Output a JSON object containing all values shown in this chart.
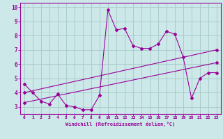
{
  "xlabel": "Windchill (Refroidissement éolien,°C)",
  "ylabel": "",
  "xlim": [
    -0.5,
    23.5
  ],
  "ylim": [
    2.5,
    10.3
  ],
  "xticks": [
    0,
    1,
    2,
    3,
    4,
    5,
    6,
    7,
    8,
    9,
    10,
    11,
    12,
    13,
    14,
    15,
    16,
    17,
    18,
    19,
    20,
    21,
    22,
    23
  ],
  "yticks": [
    3,
    4,
    5,
    6,
    7,
    8,
    9,
    10
  ],
  "bg_color": "#cce8e8",
  "line_color": "#990099",
  "grid_color": "#aacccc",
  "line1_x": [
    0,
    1,
    2,
    3,
    4,
    5,
    6,
    7,
    8,
    9,
    10,
    11,
    12,
    13,
    14,
    15,
    16,
    17,
    18,
    19,
    20,
    21,
    22,
    23
  ],
  "line1_y": [
    4.6,
    4.0,
    3.4,
    3.2,
    3.9,
    3.1,
    3.0,
    2.8,
    2.8,
    3.8,
    9.8,
    8.4,
    8.5,
    7.3,
    7.1,
    7.1,
    7.4,
    8.3,
    8.1,
    6.5,
    3.6,
    5.0,
    5.4,
    5.4
  ],
  "line2_x": [
    0,
    23
  ],
  "line2_y": [
    3.3,
    6.1
  ],
  "line3_x": [
    0,
    23
  ],
  "line3_y": [
    4.0,
    7.0
  ]
}
